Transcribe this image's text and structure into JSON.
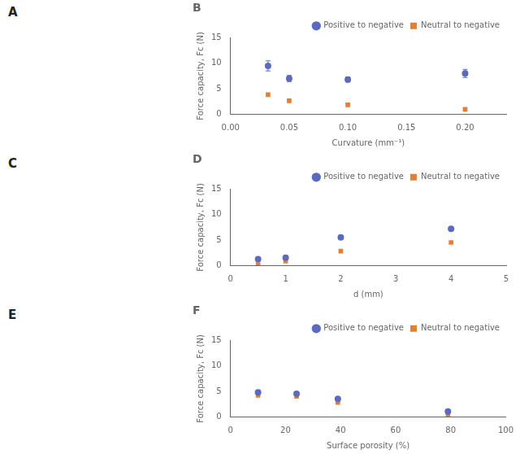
{
  "chart_data": [
    {
      "type": "scatter",
      "title": "B",
      "annotations": [
        "A"
      ],
      "x": [
        0.032,
        0.05,
        0.1,
        0.2
      ],
      "series": [
        {
          "name": "Positive to negative",
          "color": "#5b6abf",
          "marker": "circle",
          "values": [
            9.5,
            7.0,
            6.8,
            8.0
          ],
          "yerr": [
            1.0,
            0.6,
            0.5,
            0.8
          ]
        },
        {
          "name": "Neutral to negative",
          "color": "#e07f35",
          "marker": "square",
          "values": [
            3.8,
            2.6,
            1.8,
            0.9
          ]
        }
      ],
      "xlabel": "Curvature (mm⁻¹)",
      "ylabel": "Force capacity, Fc (N)",
      "xlim": [
        0.0,
        0.235
      ],
      "ylim": [
        0,
        15
      ],
      "xticks": [
        {
          "value": 0.0,
          "label": "0.00"
        },
        {
          "value": 0.05,
          "label": "0.05"
        },
        {
          "value": 0.1,
          "label": "0.10"
        },
        {
          "value": 0.15,
          "label": "0.15"
        },
        {
          "value": 0.2,
          "label": "0.20"
        }
      ],
      "yticks": [
        0,
        5,
        10,
        15
      ],
      "grid": false,
      "legend": "upper right"
    },
    {
      "type": "scatter",
      "title": "D",
      "annotations": [
        "C"
      ],
      "x": [
        0.5,
        1.0,
        2.0,
        4.0
      ],
      "series": [
        {
          "name": "Positive to negative",
          "color": "#5b6abf",
          "marker": "circle",
          "values": [
            1.2,
            1.5,
            5.5,
            7.2
          ]
        },
        {
          "name": "Neutral to negative",
          "color": "#e07f35",
          "marker": "square",
          "values": [
            0.15,
            0.8,
            2.8,
            4.5
          ]
        }
      ],
      "xlabel": "d (mm)",
      "ylabel": "Force capacity, Fc (N)",
      "xlim": [
        0,
        5
      ],
      "ylim": [
        0,
        15
      ],
      "xticks": [
        0,
        1,
        2,
        3,
        4,
        5
      ],
      "yticks": [
        0,
        5,
        10,
        15
      ],
      "grid": false,
      "legend": "upper right"
    },
    {
      "type": "scatter",
      "title": "F",
      "annotations": [
        "E"
      ],
      "x": [
        10,
        24,
        39,
        79
      ],
      "series": [
        {
          "name": "Positive to negative",
          "color": "#5b6abf",
          "marker": "circle",
          "values": [
            4.8,
            4.5,
            3.5,
            1.0
          ]
        },
        {
          "name": "Neutral to negative",
          "color": "#e07f35",
          "marker": "square",
          "values": [
            4.2,
            4.0,
            2.8,
            0.3
          ]
        }
      ],
      "xlabel": "Surface porosity (%)",
      "ylabel": "Force capacity, Fc (N)",
      "xlim": [
        0,
        100
      ],
      "ylim": [
        0,
        15
      ],
      "xticks": [
        0,
        20,
        40,
        60,
        80,
        100
      ],
      "yticks": [
        0,
        5,
        10,
        15
      ],
      "grid": false,
      "legend": "upper right"
    }
  ]
}
